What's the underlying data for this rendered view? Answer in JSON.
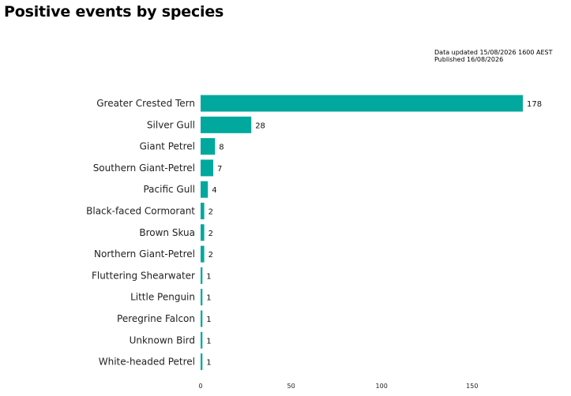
{
  "title": "Positive events by species",
  "meta": {
    "updated": "Data updated 15/08/2026 1600 AEST",
    "published": "Published 16/08/2026"
  },
  "chart_data": {
    "type": "bar",
    "orientation": "horizontal",
    "title": "Positive events by species",
    "categories": [
      "Greater Crested Tern",
      "Silver Gull",
      "Giant Petrel",
      "Southern Giant-Petrel",
      "Pacific Gull",
      "Black-faced Cormorant",
      "Brown Skua",
      "Northern Giant-Petrel",
      "Fluttering Shearwater",
      "Little Penguin",
      "Peregrine Falcon",
      "Unknown Bird",
      "White-headed Petrel"
    ],
    "values": [
      178,
      28,
      8,
      7,
      4,
      2,
      2,
      2,
      1,
      1,
      1,
      1,
      1
    ],
    "xticks": [
      0,
      50,
      100,
      150
    ],
    "xlim": [
      0,
      178
    ],
    "xlabel": "",
    "ylabel": "",
    "grid": false,
    "bar_color": "#00a89d"
  }
}
